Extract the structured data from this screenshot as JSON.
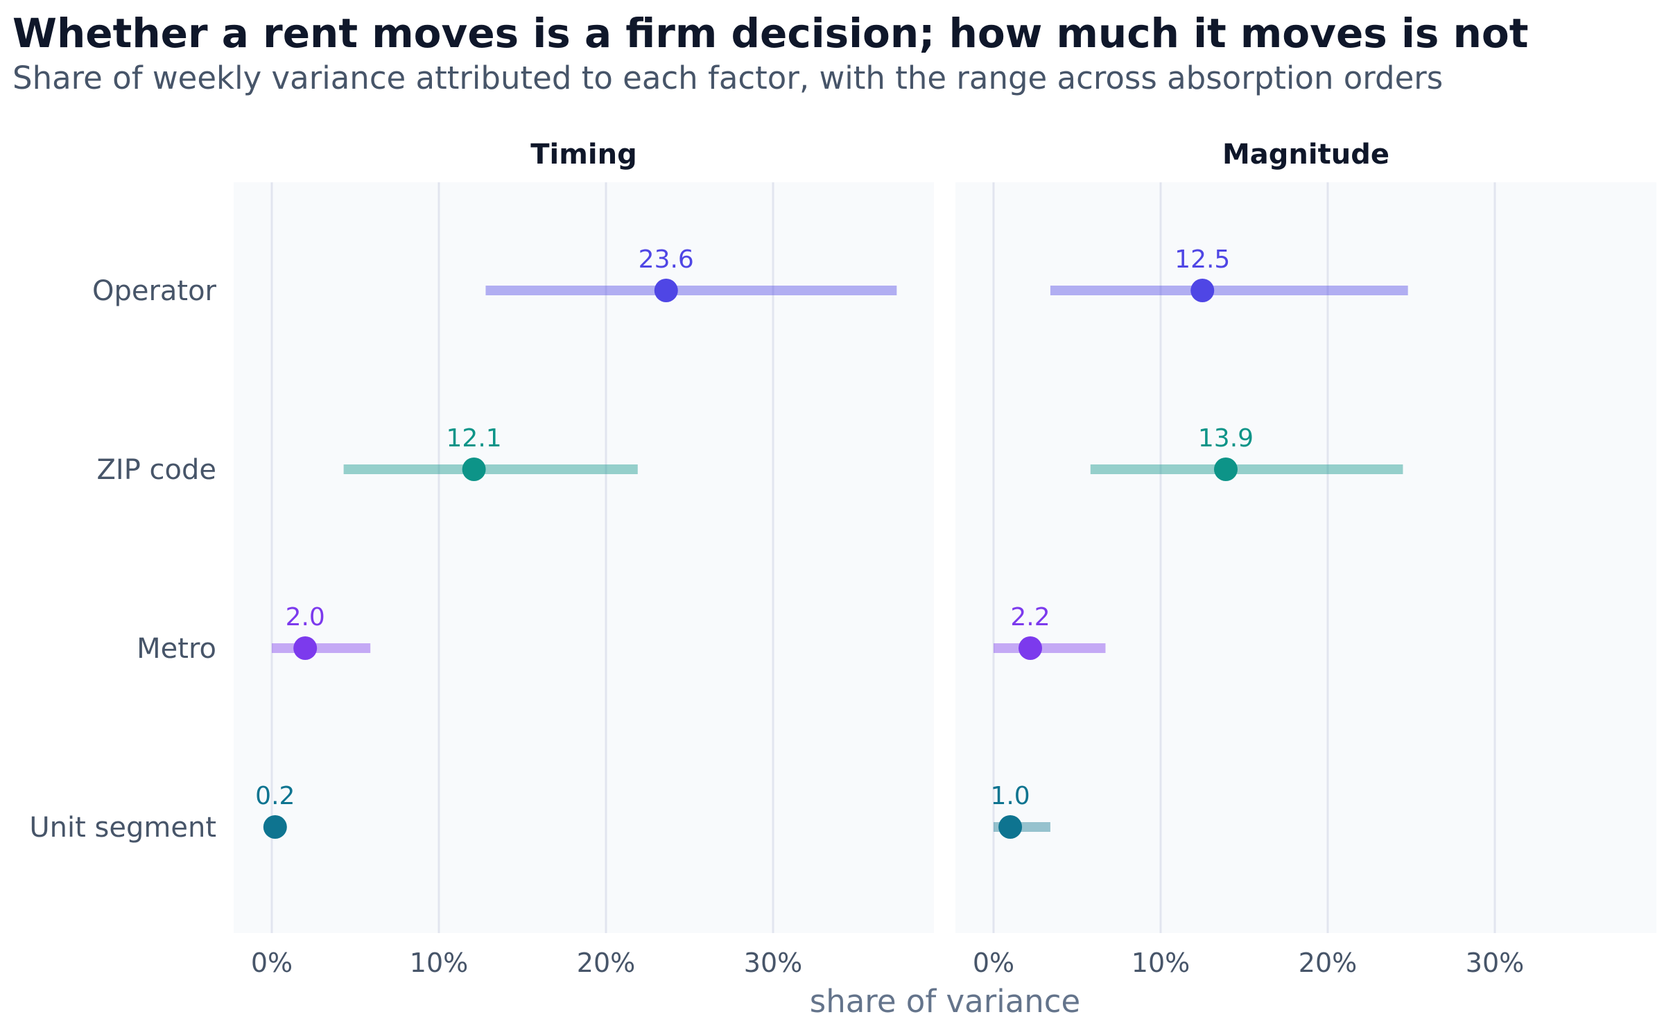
{
  "header": {
    "title": "Whether a rent moves is a firm decision; how much it moves is not",
    "subtitle": "Share of weekly variance attributed to each factor, with the range across absorption orders"
  },
  "chart_data": {
    "type": "dot-range",
    "xlabel": "share of variance",
    "xlim": [
      -2.3,
      39.8
    ],
    "xticks": [
      0,
      10,
      20,
      30
    ],
    "xtick_labels": [
      "0%",
      "10%",
      "20%",
      "30%"
    ],
    "grid": "vertical",
    "categories": [
      "Operator",
      "ZIP code",
      "Metro",
      "Unit segment"
    ],
    "colors": {
      "Operator": "#4f46e5",
      "ZIP code": "#0d9488",
      "Metro": "#7c3aed",
      "Unit segment": "#0e7490"
    },
    "panels": [
      {
        "title": "Timing",
        "points": [
          {
            "category": "Operator",
            "value": 23.6,
            "low": 12.8,
            "high": 37.4,
            "label": "23.6"
          },
          {
            "category": "ZIP code",
            "value": 12.1,
            "low": 4.3,
            "high": 21.9,
            "label": "12.1"
          },
          {
            "category": "Metro",
            "value": 2.0,
            "low": 0.0,
            "high": 5.9,
            "label": "2.0"
          },
          {
            "category": "Unit segment",
            "value": 0.2,
            "low": 0.1,
            "high": 0.3,
            "label": "0.2"
          }
        ]
      },
      {
        "title": "Magnitude",
        "points": [
          {
            "category": "Operator",
            "value": 12.5,
            "low": 3.4,
            "high": 24.8,
            "label": "12.5"
          },
          {
            "category": "ZIP code",
            "value": 13.9,
            "low": 5.8,
            "high": 24.5,
            "label": "13.9"
          },
          {
            "category": "Metro",
            "value": 2.2,
            "low": 0.0,
            "high": 6.7,
            "label": "2.2"
          },
          {
            "category": "Unit segment",
            "value": 1.0,
            "low": 0.0,
            "high": 3.4,
            "label": "1.0"
          }
        ]
      }
    ]
  }
}
